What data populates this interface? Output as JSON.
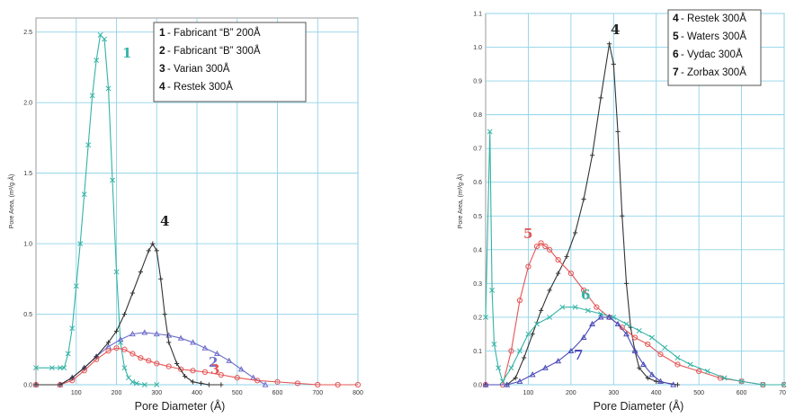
{
  "chart_data": [
    {
      "type": "line",
      "xlabel": "Pore Diameter (Å)",
      "ylabel": "Pore Area, (m²/g·Å)",
      "xlim": [
        0,
        800
      ],
      "ylim": [
        0,
        2.6
      ],
      "x_ticks": [
        "100",
        "200",
        "300",
        "400",
        "500",
        "600",
        "700",
        "800"
      ],
      "y_ticks": [
        "0.0",
        "0.5",
        "1.0",
        "1.5",
        "2.0",
        "2.5"
      ],
      "grid": true,
      "legend_position": "top-center",
      "legend": [
        {
          "num": "1",
          "label": "Fabricant “B” 200Å"
        },
        {
          "num": "2",
          "label": "Fabricant “B” 300Å"
        },
        {
          "num": "3",
          "label": "Varian 300Å"
        },
        {
          "num": "4",
          "label": "Restek 300Å"
        }
      ],
      "series": [
        {
          "name": "Fabricant “B” 200Å",
          "annotation": "1",
          "color": "#34b3a6",
          "marker": "x",
          "x": [
            0,
            40,
            60,
            70,
            80,
            90,
            100,
            110,
            120,
            130,
            140,
            150,
            160,
            170,
            180,
            190,
            200,
            210,
            220,
            230,
            240,
            250,
            270,
            300
          ],
          "y": [
            0.12,
            0.12,
            0.12,
            0.12,
            0.22,
            0.4,
            0.7,
            1.0,
            1.35,
            1.7,
            2.05,
            2.3,
            2.48,
            2.45,
            2.1,
            1.45,
            0.8,
            0.3,
            0.12,
            0.05,
            0.02,
            0.01,
            0,
            0
          ]
        },
        {
          "name": "Fabricant “B” 300Å",
          "annotation": "2",
          "color": "#6e6ecc",
          "marker": "triangle",
          "x": [
            0,
            60,
            90,
            120,
            150,
            180,
            210,
            240,
            270,
            300,
            330,
            360,
            390,
            420,
            450,
            480,
            510,
            540,
            570
          ],
          "y": [
            0,
            0,
            0.05,
            0.12,
            0.2,
            0.27,
            0.32,
            0.36,
            0.37,
            0.36,
            0.35,
            0.33,
            0.3,
            0.26,
            0.22,
            0.17,
            0.11,
            0.05,
            0
          ]
        },
        {
          "name": "Varian 300Å",
          "annotation": "3",
          "color": "#e45555",
          "marker": "circle",
          "x": [
            0,
            60,
            90,
            120,
            150,
            180,
            200,
            220,
            240,
            260,
            280,
            300,
            330,
            360,
            390,
            420,
            460,
            500,
            550,
            600,
            650,
            700,
            750,
            800
          ],
          "y": [
            0,
            0,
            0.03,
            0.1,
            0.18,
            0.24,
            0.26,
            0.25,
            0.22,
            0.19,
            0.17,
            0.15,
            0.13,
            0.11,
            0.1,
            0.09,
            0.07,
            0.05,
            0.03,
            0.02,
            0.01,
            0,
            0,
            0
          ]
        },
        {
          "name": "Restek 300Å",
          "annotation": "4",
          "color": "#333333",
          "marker": "plus",
          "x": [
            0,
            60,
            90,
            120,
            150,
            180,
            200,
            220,
            240,
            260,
            280,
            290,
            300,
            310,
            320,
            330,
            350,
            370,
            390,
            410,
            430,
            460
          ],
          "y": [
            0,
            0,
            0.05,
            0.12,
            0.2,
            0.3,
            0.38,
            0.5,
            0.65,
            0.8,
            0.95,
            1.0,
            0.95,
            0.75,
            0.5,
            0.3,
            0.15,
            0.06,
            0.02,
            0.01,
            0,
            0
          ]
        }
      ]
    },
    {
      "type": "line",
      "xlabel": "Pore Diameter (Å)",
      "ylabel": "Pore Area, (m²/g·Å)",
      "xlim": [
        0,
        700
      ],
      "ylim": [
        0,
        1.1
      ],
      "x_ticks": [
        "100",
        "200",
        "300",
        "400",
        "500",
        "600",
        "700"
      ],
      "y_ticks": [
        "0.0",
        "0.1",
        "0.2",
        "0.3",
        "0.4",
        "0.5",
        "0.6",
        "0.7",
        "0.8",
        "0.9",
        "1.0",
        "1.1"
      ],
      "grid": true,
      "legend_position": "top-right",
      "legend": [
        {
          "num": "4",
          "label": "Restek 300Å"
        },
        {
          "num": "5",
          "label": "Waters 300Å"
        },
        {
          "num": "6",
          "label": "Vydac 300Å"
        },
        {
          "num": "7",
          "label": "Zorbax 300Å"
        }
      ],
      "series": [
        {
          "name": "Restek 300Å",
          "annotation": "4",
          "color": "#333333",
          "marker": "plus",
          "x": [
            0,
            50,
            70,
            90,
            110,
            130,
            150,
            170,
            190,
            210,
            230,
            250,
            270,
            290,
            300,
            310,
            320,
            330,
            340,
            350,
            360,
            380,
            400,
            450
          ],
          "y": [
            0,
            0,
            0.02,
            0.08,
            0.15,
            0.22,
            0.28,
            0.33,
            0.38,
            0.45,
            0.55,
            0.68,
            0.85,
            1.01,
            0.95,
            0.75,
            0.5,
            0.3,
            0.17,
            0.1,
            0.05,
            0.02,
            0.01,
            0
          ]
        },
        {
          "name": "Waters 300Å",
          "annotation": "5",
          "color": "#e45555",
          "marker": "circle",
          "x": [
            0,
            40,
            60,
            80,
            100,
            120,
            130,
            140,
            150,
            170,
            200,
            230,
            260,
            290,
            320,
            350,
            380,
            410,
            450,
            500,
            550,
            600,
            650,
            700
          ],
          "y": [
            0,
            0,
            0.1,
            0.25,
            0.35,
            0.41,
            0.42,
            0.41,
            0.4,
            0.37,
            0.33,
            0.28,
            0.23,
            0.2,
            0.17,
            0.14,
            0.12,
            0.09,
            0.06,
            0.04,
            0.02,
            0.01,
            0,
            0
          ]
        },
        {
          "name": "Vydac 300Å",
          "annotation": "6",
          "color": "#34b3a6",
          "marker": "x",
          "x": [
            0,
            10,
            15,
            20,
            30,
            40,
            60,
            80,
            100,
            120,
            150,
            180,
            210,
            240,
            270,
            300,
            330,
            360,
            390,
            420,
            450,
            480,
            520,
            560,
            600,
            650,
            700
          ],
          "y": [
            0.2,
            0.75,
            0.28,
            0.12,
            0.05,
            0.01,
            0.05,
            0.1,
            0.15,
            0.18,
            0.2,
            0.23,
            0.23,
            0.22,
            0.21,
            0.2,
            0.18,
            0.16,
            0.14,
            0.11,
            0.08,
            0.06,
            0.04,
            0.02,
            0.01,
            0,
            0
          ]
        },
        {
          "name": "Zorbax 300Å",
          "annotation": "7",
          "color": "#4a4ab8",
          "marker": "triangle",
          "x": [
            0,
            50,
            80,
            110,
            140,
            170,
            200,
            230,
            250,
            270,
            290,
            310,
            330,
            350,
            370,
            390,
            410,
            440
          ],
          "y": [
            0,
            0,
            0.01,
            0.03,
            0.05,
            0.07,
            0.1,
            0.14,
            0.18,
            0.2,
            0.2,
            0.18,
            0.15,
            0.1,
            0.06,
            0.03,
            0.01,
            0
          ]
        }
      ]
    }
  ]
}
